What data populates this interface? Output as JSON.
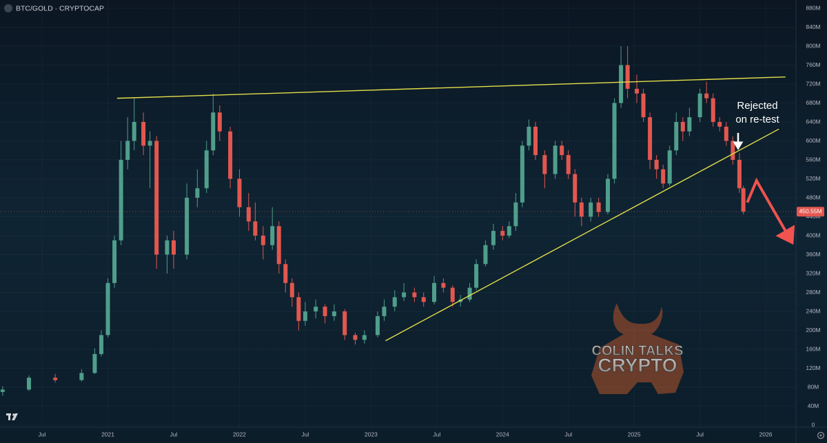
{
  "chart_data": {
    "type": "candlestick",
    "title": "BTC/GOLD · CRYPTOCAP",
    "up_color": "#4f9e8b",
    "down_color": "#e2574f",
    "grid": true,
    "xlim": [
      2020.18,
      2026.23
    ],
    "xticks": [
      {
        "value": 2020.5,
        "label": "Jul"
      },
      {
        "value": 2021,
        "label": "2021"
      },
      {
        "value": 2021.5,
        "label": "Jul"
      },
      {
        "value": 2022,
        "label": "2022"
      },
      {
        "value": 2022.5,
        "label": "Jul"
      },
      {
        "value": 2023,
        "label": "2023"
      },
      {
        "value": 2023.5,
        "label": "Jul"
      },
      {
        "value": 2024,
        "label": "2024"
      },
      {
        "value": 2024.5,
        "label": "Jul"
      },
      {
        "value": 2025,
        "label": "2025"
      },
      {
        "value": 2025.5,
        "label": "Jul"
      },
      {
        "value": 2026,
        "label": "2026"
      }
    ],
    "ylim": [
      0,
      880
    ],
    "yticks": [
      0,
      {
        "value": 40,
        "label": "40M"
      },
      {
        "value": 80,
        "label": "80M"
      },
      {
        "value": 120,
        "label": "120M"
      },
      {
        "value": 160,
        "label": "160M"
      },
      {
        "value": 200,
        "label": "200M"
      },
      {
        "value": 240,
        "label": "240M"
      },
      {
        "value": 280,
        "label": "280M"
      },
      {
        "value": 320,
        "label": "320M"
      },
      {
        "value": 360,
        "label": "360M"
      },
      {
        "value": 400,
        "label": "400M"
      },
      {
        "value": 440,
        "label": "440M"
      },
      {
        "value": 480,
        "label": "480M"
      },
      {
        "value": 520,
        "label": "520M"
      },
      {
        "value": 560,
        "label": "560M"
      },
      {
        "value": 600,
        "label": "600M"
      },
      {
        "value": 640,
        "label": "640M"
      },
      {
        "value": 680,
        "label": "680M"
      },
      {
        "value": 720,
        "label": "720M"
      },
      {
        "value": 760,
        "label": "760M"
      },
      {
        "value": 800,
        "label": "800M"
      },
      {
        "value": 840,
        "label": "840M"
      },
      {
        "value": 880,
        "label": "880M"
      }
    ],
    "x": [
      2020.2,
      2020.4,
      2020.6,
      2020.8,
      2020.9,
      2020.95,
      2021.0,
      2021.05,
      2021.1,
      2021.15,
      2021.2,
      2021.27,
      2021.32,
      2021.37,
      2021.45,
      2021.5,
      2021.6,
      2021.68,
      2021.75,
      2021.8,
      2021.85,
      2021.93,
      2022.0,
      2022.07,
      2022.12,
      2022.18,
      2022.25,
      2022.3,
      2022.35,
      2022.4,
      2022.45,
      2022.5,
      2022.58,
      2022.65,
      2022.72,
      2022.8,
      2022.88,
      2022.95,
      2023.05,
      2023.1,
      2023.18,
      2023.25,
      2023.33,
      2023.4,
      2023.48,
      2023.55,
      2023.62,
      2023.68,
      2023.75,
      2023.8,
      2023.87,
      2023.93,
      2024.0,
      2024.05,
      2024.1,
      2024.15,
      2024.2,
      2024.25,
      2024.32,
      2024.4,
      2024.45,
      2024.5,
      2024.55,
      2024.6,
      2024.67,
      2024.73,
      2024.8,
      2024.85,
      2024.9,
      2024.95,
      2025.02,
      2025.07,
      2025.12,
      2025.17,
      2025.22,
      2025.27,
      2025.32,
      2025.37,
      2025.42,
      2025.5,
      2025.55,
      2025.6,
      2025.65,
      2025.7,
      2025.75,
      2025.8,
      2025.83
    ],
    "open": [
      70,
      75,
      100,
      95,
      110,
      150,
      190,
      300,
      390,
      560,
      600,
      640,
      590,
      600,
      360,
      390,
      360,
      480,
      500,
      580,
      660,
      620,
      520,
      460,
      430,
      400,
      380,
      420,
      340,
      300,
      270,
      220,
      240,
      250,
      230,
      240,
      190,
      180,
      190,
      230,
      250,
      270,
      280,
      270,
      260,
      300,
      290,
      260,
      265,
      290,
      340,
      380,
      410,
      400,
      420,
      470,
      590,
      630,
      570,
      530,
      590,
      570,
      530,
      470,
      440,
      470,
      450,
      520,
      680,
      760,
      710,
      700,
      650,
      560,
      540,
      510,
      580,
      640,
      620,
      650,
      700,
      690,
      640,
      630,
      600,
      560,
      500
    ],
    "high": [
      82,
      105,
      108,
      118,
      162,
      200,
      310,
      400,
      600,
      650,
      690,
      660,
      620,
      610,
      400,
      410,
      510,
      540,
      600,
      700,
      675,
      630,
      540,
      490,
      470,
      420,
      460,
      430,
      350,
      310,
      280,
      260,
      265,
      255,
      255,
      245,
      195,
      200,
      240,
      265,
      285,
      300,
      290,
      280,
      315,
      310,
      295,
      275,
      300,
      350,
      390,
      425,
      420,
      430,
      490,
      600,
      645,
      640,
      580,
      600,
      600,
      580,
      540,
      480,
      480,
      480,
      530,
      690,
      800,
      800,
      740,
      710,
      660,
      570,
      550,
      590,
      660,
      650,
      670,
      710,
      725,
      700,
      650,
      640,
      610,
      575,
      505
    ],
    "low": [
      62,
      72,
      90,
      92,
      108,
      145,
      185,
      290,
      380,
      540,
      580,
      570,
      500,
      330,
      320,
      330,
      350,
      460,
      490,
      570,
      600,
      500,
      440,
      410,
      390,
      350,
      370,
      320,
      280,
      250,
      200,
      210,
      225,
      215,
      220,
      180,
      170,
      172,
      185,
      220,
      240,
      262,
      260,
      250,
      255,
      280,
      250,
      250,
      260,
      285,
      335,
      370,
      390,
      395,
      410,
      460,
      580,
      560,
      500,
      520,
      560,
      520,
      440,
      420,
      430,
      440,
      445,
      510,
      670,
      690,
      680,
      640,
      540,
      520,
      500,
      505,
      570,
      600,
      610,
      640,
      680,
      630,
      620,
      590,
      550,
      490,
      445
    ],
    "close": [
      75,
      100,
      95,
      110,
      150,
      190,
      300,
      390,
      560,
      600,
      640,
      590,
      600,
      360,
      390,
      360,
      480,
      500,
      580,
      660,
      620,
      520,
      460,
      430,
      400,
      380,
      420,
      340,
      300,
      270,
      220,
      240,
      250,
      230,
      240,
      190,
      180,
      190,
      230,
      250,
      270,
      280,
      270,
      260,
      300,
      290,
      260,
      265,
      290,
      340,
      380,
      410,
      400,
      420,
      470,
      590,
      630,
      570,
      530,
      590,
      570,
      530,
      470,
      440,
      470,
      450,
      520,
      680,
      760,
      710,
      700,
      650,
      560,
      540,
      510,
      580,
      640,
      620,
      650,
      700,
      690,
      640,
      630,
      600,
      560,
      500,
      450.55
    ],
    "last_price": {
      "value": 450.55,
      "label": "450.55M"
    },
    "trendlines": [
      {
        "color": "#e6e04a",
        "x": [
          2021.07,
          2026.15
        ],
        "y": [
          690,
          735
        ]
      },
      {
        "color": "#e6e04a",
        "x": [
          2023.11,
          2026.1
        ],
        "y": [
          178,
          625
        ]
      }
    ],
    "projection": {
      "color": "#f05350",
      "x": [
        2025.86,
        2025.93,
        2026.2
      ],
      "y": [
        470,
        516,
        386
      ]
    },
    "annotation": {
      "lines": [
        "Rejected",
        "on re-test"
      ],
      "x": 2025.79,
      "y": 582
    },
    "watermark": [
      "COLIN TALKS",
      "CRYPTO"
    ]
  }
}
